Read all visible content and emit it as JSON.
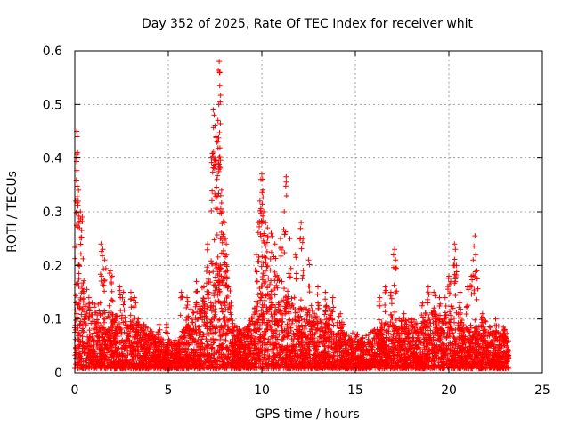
{
  "chart_data": {
    "type": "scatter",
    "title": "Day 352 of 2025, Rate Of TEC Index for receiver whit",
    "xlabel": "GPS time / hours",
    "ylabel": "ROTI / TECUs",
    "xlim": [
      0,
      25
    ],
    "ylim": [
      0,
      0.6
    ],
    "x_ticks": [
      0,
      5,
      10,
      15,
      20,
      25
    ],
    "x_tick_labels": [
      "0",
      "5",
      "10",
      "15",
      "20",
      "25"
    ],
    "y_ticks": [
      0,
      0.1,
      0.2,
      0.3,
      0.4,
      0.5,
      0.6
    ],
    "y_tick_labels": [
      "0",
      "0.1",
      "0.2",
      "0.3",
      "0.4",
      "0.5",
      "0.6"
    ],
    "grid": true,
    "marker": "plus",
    "color": "#ff0000",
    "series": [
      {
        "density_profile": {
          "x": [
            0,
            0.25,
            0.5,
            1,
            1.5,
            2,
            2.5,
            3,
            3.5,
            4,
            4.5,
            5,
            5.5,
            6,
            6.5,
            7,
            7.5,
            8,
            8.5,
            9,
            9.5,
            10,
            10.5,
            11,
            11.5,
            12,
            12.5,
            13,
            13.5,
            14,
            14.5,
            15,
            15.5,
            16,
            16.5,
            17,
            17.5,
            18,
            18.5,
            19,
            19.5,
            20,
            20.5,
            21,
            21.5,
            22,
            22.5,
            23,
            23.2
          ],
          "typical_max": [
            0.2,
            0.18,
            0.15,
            0.12,
            0.11,
            0.1,
            0.1,
            0.09,
            0.08,
            0.07,
            0.06,
            0.05,
            0.05,
            0.09,
            0.12,
            0.15,
            0.22,
            0.2,
            0.09,
            0.07,
            0.1,
            0.2,
            0.18,
            0.16,
            0.14,
            0.12,
            0.11,
            0.1,
            0.11,
            0.09,
            0.07,
            0.06,
            0.06,
            0.07,
            0.08,
            0.1,
            0.09,
            0.08,
            0.09,
            0.1,
            0.1,
            0.11,
            0.1,
            0.09,
            0.08,
            0.08,
            0.07,
            0.07,
            0.06
          ]
        },
        "peaks": [
          {
            "x": 0.1,
            "y": 0.45
          },
          {
            "x": 0.12,
            "y": 0.44
          },
          {
            "x": 0.15,
            "y": 0.41
          },
          {
            "x": 0.2,
            "y": 0.34
          },
          {
            "x": 0.3,
            "y": 0.3
          },
          {
            "x": 0.4,
            "y": 0.29
          },
          {
            "x": 0.05,
            "y": 0.32
          },
          {
            "x": 0.25,
            "y": 0.27
          },
          {
            "x": 1.4,
            "y": 0.24
          },
          {
            "x": 1.5,
            "y": 0.23
          },
          {
            "x": 1.6,
            "y": 0.21
          },
          {
            "x": 1.9,
            "y": 0.19
          },
          {
            "x": 2.0,
            "y": 0.18
          },
          {
            "x": 2.4,
            "y": 0.16
          },
          {
            "x": 2.6,
            "y": 0.15
          },
          {
            "x": 3.0,
            "y": 0.15
          },
          {
            "x": 3.2,
            "y": 0.14
          },
          {
            "x": 3.4,
            "y": 0.1
          },
          {
            "x": 3.7,
            "y": 0.09
          },
          {
            "x": 4.5,
            "y": 0.09
          },
          {
            "x": 4.9,
            "y": 0.09
          },
          {
            "x": 5.7,
            "y": 0.15
          },
          {
            "x": 6.0,
            "y": 0.14
          },
          {
            "x": 6.5,
            "y": 0.17
          },
          {
            "x": 6.9,
            "y": 0.16
          },
          {
            "x": 7.1,
            "y": 0.24
          },
          {
            "x": 7.3,
            "y": 0.4
          },
          {
            "x": 7.4,
            "y": 0.49
          },
          {
            "x": 7.45,
            "y": 0.48
          },
          {
            "x": 7.5,
            "y": 0.46
          },
          {
            "x": 7.55,
            "y": 0.44
          },
          {
            "x": 7.6,
            "y": 0.43
          },
          {
            "x": 7.65,
            "y": 0.47
          },
          {
            "x": 7.7,
            "y": 0.5
          },
          {
            "x": 7.72,
            "y": 0.58
          },
          {
            "x": 7.74,
            "y": 0.56
          },
          {
            "x": 7.75,
            "y": 0.535
          },
          {
            "x": 7.8,
            "y": 0.33
          },
          {
            "x": 7.9,
            "y": 0.3
          },
          {
            "x": 8.0,
            "y": 0.28
          },
          {
            "x": 8.05,
            "y": 0.25
          },
          {
            "x": 8.1,
            "y": 0.24
          },
          {
            "x": 7.6,
            "y": 0.36
          },
          {
            "x": 7.85,
            "y": 0.34
          },
          {
            "x": 9.7,
            "y": 0.22
          },
          {
            "x": 9.8,
            "y": 0.28
          },
          {
            "x": 9.9,
            "y": 0.32
          },
          {
            "x": 9.95,
            "y": 0.36
          },
          {
            "x": 10.0,
            "y": 0.37
          },
          {
            "x": 10.05,
            "y": 0.34
          },
          {
            "x": 10.1,
            "y": 0.3
          },
          {
            "x": 10.2,
            "y": 0.28
          },
          {
            "x": 10.3,
            "y": 0.27
          },
          {
            "x": 10.5,
            "y": 0.26
          },
          {
            "x": 10.7,
            "y": 0.24
          },
          {
            "x": 11.0,
            "y": 0.25
          },
          {
            "x": 11.2,
            "y": 0.3
          },
          {
            "x": 11.3,
            "y": 0.365
          },
          {
            "x": 11.5,
            "y": 0.25
          },
          {
            "x": 11.8,
            "y": 0.22
          },
          {
            "x": 12.1,
            "y": 0.28
          },
          {
            "x": 12.2,
            "y": 0.25
          },
          {
            "x": 12.5,
            "y": 0.21
          },
          {
            "x": 13.0,
            "y": 0.16
          },
          {
            "x": 13.4,
            "y": 0.15
          },
          {
            "x": 13.8,
            "y": 0.14
          },
          {
            "x": 14.2,
            "y": 0.11
          },
          {
            "x": 16.3,
            "y": 0.14
          },
          {
            "x": 16.6,
            "y": 0.16
          },
          {
            "x": 16.9,
            "y": 0.15
          },
          {
            "x": 17.1,
            "y": 0.23
          },
          {
            "x": 17.15,
            "y": 0.21
          },
          {
            "x": 17.6,
            "y": 0.11
          },
          {
            "x": 18.0,
            "y": 0.1
          },
          {
            "x": 18.6,
            "y": 0.13
          },
          {
            "x": 18.9,
            "y": 0.16
          },
          {
            "x": 19.2,
            "y": 0.15
          },
          {
            "x": 19.5,
            "y": 0.14
          },
          {
            "x": 19.8,
            "y": 0.14
          },
          {
            "x": 20.0,
            "y": 0.18
          },
          {
            "x": 20.1,
            "y": 0.17
          },
          {
            "x": 20.3,
            "y": 0.24
          },
          {
            "x": 20.35,
            "y": 0.23
          },
          {
            "x": 20.4,
            "y": 0.2
          },
          {
            "x": 20.6,
            "y": 0.15
          },
          {
            "x": 21.0,
            "y": 0.16
          },
          {
            "x": 21.2,
            "y": 0.18
          },
          {
            "x": 21.3,
            "y": 0.21
          },
          {
            "x": 21.4,
            "y": 0.255
          },
          {
            "x": 21.5,
            "y": 0.19
          },
          {
            "x": 21.8,
            "y": 0.11
          },
          {
            "x": 22.5,
            "y": 0.1
          },
          {
            "x": 23.0,
            "y": 0.08
          }
        ]
      }
    ]
  }
}
